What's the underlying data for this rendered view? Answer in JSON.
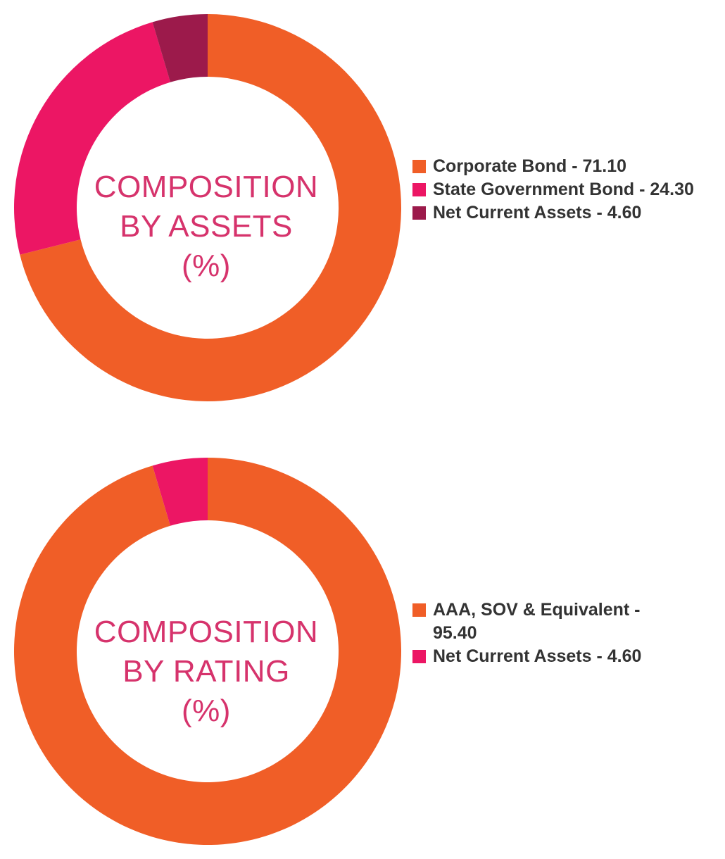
{
  "colors": {
    "orange": "#f05e27",
    "pink": "#ec1664",
    "maroon": "#9c1a4b",
    "title": "#d6336c"
  },
  "chart_data": [
    {
      "type": "pie",
      "title_lines": [
        "COMPOSITION",
        "BY ASSETS",
        "(%)"
      ],
      "categories": [
        "Corporate Bond - 71.10",
        "State Government Bond - 24.30",
        "Net Current Assets - 4.60"
      ],
      "values": [
        71.1,
        24.3,
        4.6
      ],
      "colors": [
        "#f05e27",
        "#ec1664",
        "#9c1a4b"
      ],
      "legend": "right",
      "style": "donut"
    },
    {
      "type": "pie",
      "title_lines": [
        "COMPOSITION",
        "BY RATING",
        "(%)"
      ],
      "categories": [
        "AAA, SOV & Equivalent - 95.40",
        "Net Current Assets - 4.60"
      ],
      "values": [
        95.4,
        4.6
      ],
      "colors": [
        "#f05e27",
        "#ec1664"
      ],
      "legend": "right",
      "style": "donut"
    }
  ]
}
